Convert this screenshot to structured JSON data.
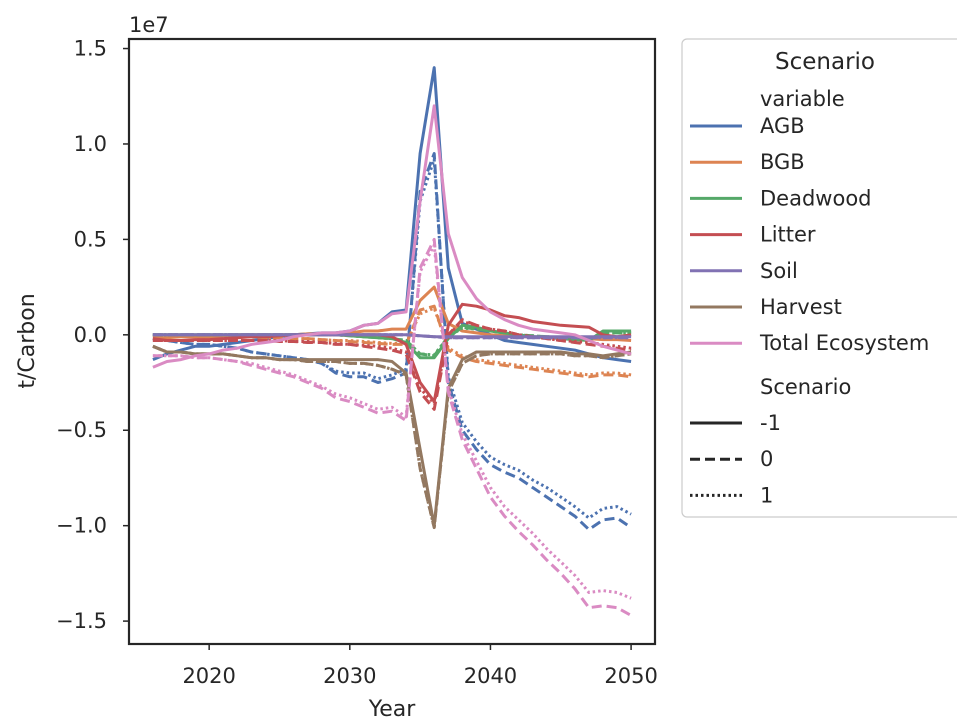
{
  "chart_data": {
    "type": "line",
    "title": "",
    "xlabel": "Year",
    "ylabel": "t/Carbon",
    "y_offset_label": "1e7",
    "xlim": [
      2014.3,
      2051.7
    ],
    "ylim": [
      -16200000.0,
      15500000.0
    ],
    "xticks": [
      2020,
      2030,
      2040,
      2050
    ],
    "yticks": [
      -15000000.0,
      -10000000.0,
      -5000000.0,
      0,
      5000000.0,
      10000000.0,
      15000000.0
    ],
    "ytick_labels": [
      "−1.5",
      "−1.0",
      "−0.5",
      "0.0",
      "0.5",
      "1.0",
      "1.5"
    ],
    "xtick_labels": [
      "2020",
      "2030",
      "2040",
      "2050"
    ],
    "grid": false,
    "legend": {
      "placement": "outside-right",
      "title": "Scenario",
      "hue_heading": "variable",
      "style_heading": "Scenario",
      "styles": [
        {
          "label": "-1",
          "dash": "solid"
        },
        {
          "label": "0",
          "dash": "dashed"
        },
        {
          "label": "1",
          "dash": "dotted"
        }
      ]
    },
    "x": [
      2016,
      2017,
      2018,
      2019,
      2020,
      2021,
      2022,
      2023,
      2024,
      2025,
      2026,
      2027,
      2028,
      2029,
      2030,
      2031,
      2032,
      2033,
      2034,
      2035,
      2036,
      2037,
      2038,
      2039,
      2040,
      2041,
      2042,
      2043,
      2044,
      2045,
      2046,
      2047,
      2048,
      2049,
      2050
    ],
    "series": [
      {
        "name": "AGB",
        "color": "#4c72b0",
        "lines": {
          "-1": [
            -1300000.0,
            -1000000.0,
            -800000.0,
            -600000.0,
            -600000.0,
            -500000.0,
            -400000.0,
            -300000.0,
            -200000.0,
            -100000.0,
            0,
            50000.0,
            100000.0,
            100000.0,
            200000.0,
            500000.0,
            600000.0,
            1200000.0,
            1300000.0,
            9500000.0,
            14000000.0,
            3500000.0,
            600000.0,
            300000.0,
            0,
            -300000.0,
            -400000.0,
            -500000.0,
            -600000.0,
            -700000.0,
            -800000.0,
            -1000000.0,
            -1200000.0,
            -1300000.0,
            -1400000.0
          ],
          "0": [
            -200000.0,
            -300000.0,
            -400000.0,
            -500000.0,
            -500000.0,
            -600000.0,
            -700000.0,
            -900000.0,
            -1000000.0,
            -1100000.0,
            -1200000.0,
            -1300000.0,
            -1500000.0,
            -2000000.0,
            -2200000.0,
            -2200000.0,
            -2500000.0,
            -2300000.0,
            -2000000.0,
            7500000.0,
            9500000.0,
            -2500000.0,
            -5000000.0,
            -6000000.0,
            -6800000.0,
            -7200000.0,
            -7500000.0,
            -8000000.0,
            -8500000.0,
            -9000000.0,
            -9500000.0,
            -10200000.0,
            -9700000.0,
            -9600000.0,
            -10100000.0
          ],
          "1": [
            -200000.0,
            -300000.0,
            -400000.0,
            -500000.0,
            -500000.0,
            -600000.0,
            -700000.0,
            -900000.0,
            -1000000.0,
            -1100000.0,
            -1200000.0,
            -1300000.0,
            -1500000.0,
            -1900000.0,
            -2000000.0,
            -2000000.0,
            -2300000.0,
            -2100000.0,
            -1800000.0,
            7000000.0,
            9200000.0,
            -2200000.0,
            -4600000.0,
            -5600000.0,
            -6400000.0,
            -6800000.0,
            -7100000.0,
            -7600000.0,
            -8000000.0,
            -8500000.0,
            -9000000.0,
            -9600000.0,
            -9100000.0,
            -9000000.0,
            -9400000.0
          ]
        }
      },
      {
        "name": "BGB",
        "color": "#dd8452",
        "lines": {
          "-1": [
            -200000.0,
            -150000.0,
            -100000.0,
            -100000.0,
            -100000.0,
            -50000.0,
            0,
            0,
            0,
            0,
            0,
            50000.0,
            50000.0,
            50000.0,
            100000.0,
            200000.0,
            200000.0,
            300000.0,
            300000.0,
            1800000.0,
            2500000.0,
            600000.0,
            200000.0,
            100000.0,
            0,
            -50000.0,
            -100000.0,
            -100000.0,
            -150000.0,
            -200000.0,
            -200000.0,
            -200000.0,
            -250000.0,
            -250000.0,
            -300000.0
          ],
          "0": [
            -50000.0,
            -50000.0,
            -50000.0,
            -100000.0,
            -100000.0,
            -100000.0,
            -100000.0,
            -100000.0,
            -150000.0,
            -150000.0,
            -200000.0,
            -200000.0,
            -250000.0,
            -300000.0,
            -350000.0,
            -400000.0,
            -450000.0,
            -500000.0,
            -500000.0,
            1300000.0,
            1500000.0,
            -800000.0,
            -1200000.0,
            -1400000.0,
            -1500000.0,
            -1600000.0,
            -1700000.0,
            -1800000.0,
            -1900000.0,
            -2000000.0,
            -2100000.0,
            -2200000.0,
            -2100000.0,
            -2100000.0,
            -2200000.0
          ],
          "1": [
            -50000.0,
            -50000.0,
            -50000.0,
            -100000.0,
            -100000.0,
            -100000.0,
            -100000.0,
            -100000.0,
            -150000.0,
            -150000.0,
            -200000.0,
            -200000.0,
            -250000.0,
            -300000.0,
            -300000.0,
            -350000.0,
            -400000.0,
            -450000.0,
            -450000.0,
            1100000.0,
            1400000.0,
            -700000.0,
            -1100000.0,
            -1300000.0,
            -1400000.0,
            -1500000.0,
            -1600000.0,
            -1700000.0,
            -1800000.0,
            -1900000.0,
            -2000000.0,
            -2100000.0,
            -2000000.0,
            -2000000.0,
            -2100000.0
          ]
        }
      },
      {
        "name": "Deadwood",
        "color": "#55a868",
        "lines": {
          "-1": [
            0,
            0,
            0,
            0,
            0,
            0,
            0,
            0,
            0,
            0,
            0,
            0,
            0,
            0,
            -50000.0,
            -100000.0,
            -150000.0,
            -200000.0,
            -400000.0,
            -1200000.0,
            -1200000.0,
            -200000.0,
            500000.0,
            400000.0,
            200000.0,
            100000.0,
            0,
            -100000.0,
            -100000.0,
            -200000.0,
            -250000.0,
            -300000.0,
            200000.0,
            200000.0,
            200000.0
          ],
          "0": [
            0,
            0,
            0,
            0,
            0,
            0,
            0,
            0,
            0,
            0,
            0,
            0,
            0,
            0,
            -50000.0,
            -100000.0,
            -150000.0,
            -200000.0,
            -300000.0,
            -1000000.0,
            -1100000.0,
            -100000.0,
            400000.0,
            300000.0,
            200000.0,
            100000.0,
            0,
            -50000.0,
            -100000.0,
            -150000.0,
            -200000.0,
            -250000.0,
            100000.0,
            100000.0,
            100000.0
          ],
          "1": [
            0,
            0,
            0,
            0,
            0,
            0,
            0,
            0,
            0,
            0,
            0,
            0,
            0,
            0,
            -50000.0,
            -100000.0,
            -150000.0,
            -200000.0,
            -300000.0,
            -1000000.0,
            -1050000.0,
            -100000.0,
            350000.0,
            300000.0,
            200000.0,
            100000.0,
            0,
            -50000.0,
            -100000.0,
            -150000.0,
            -200000.0,
            -250000.0,
            100000.0,
            100000.0,
            100000.0
          ]
        }
      },
      {
        "name": "Litter",
        "color": "#c44e52",
        "lines": {
          "-1": [
            -200000.0,
            -300000.0,
            -300000.0,
            -250000.0,
            -250000.0,
            -200000.0,
            -150000.0,
            -100000.0,
            -100000.0,
            -50000.0,
            0,
            0,
            0,
            0,
            0,
            0,
            0,
            -100000.0,
            -500000.0,
            -2500000.0,
            -3500000.0,
            500000.0,
            1600000.0,
            1500000.0,
            1300000.0,
            1000000.0,
            900000.0,
            700000.0,
            600000.0,
            500000.0,
            450000.0,
            400000.0,
            0,
            -100000.0,
            0
          ],
          "0": [
            -300000.0,
            -300000.0,
            -300000.0,
            -300000.0,
            -300000.0,
            -300000.0,
            -300000.0,
            -300000.0,
            -300000.0,
            -350000.0,
            -350000.0,
            -400000.0,
            -400000.0,
            -500000.0,
            -500000.0,
            -600000.0,
            -700000.0,
            -800000.0,
            -1000000.0,
            -3000000.0,
            -3900000.0,
            0,
            800000.0,
            500000.0,
            300000.0,
            200000.0,
            0,
            -100000.0,
            -200000.0,
            -300000.0,
            -400000.0,
            -500000.0,
            -600000.0,
            -700000.0,
            -800000.0
          ],
          "1": [
            -300000.0,
            -300000.0,
            -300000.0,
            -300000.0,
            -300000.0,
            -300000.0,
            -300000.0,
            -300000.0,
            -300000.0,
            -300000.0,
            -350000.0,
            -350000.0,
            -400000.0,
            -450000.0,
            -500000.0,
            -550000.0,
            -600000.0,
            -700000.0,
            -900000.0,
            -2800000.0,
            -3600000.0,
            0,
            700000.0,
            500000.0,
            300000.0,
            200000.0,
            0,
            -100000.0,
            -200000.0,
            -300000.0,
            -350000.0,
            -400000.0,
            -500000.0,
            -600000.0,
            -700000.0
          ]
        }
      },
      {
        "name": "Soil",
        "color": "#8172b3",
        "lines": {
          "-1": [
            0,
            0,
            0,
            0,
            0,
            0,
            0,
            0,
            0,
            0,
            0,
            0,
            0,
            0,
            0,
            0,
            0,
            0,
            0,
            -50000.0,
            -100000.0,
            -100000.0,
            -100000.0,
            -100000.0,
            -100000.0,
            -100000.0,
            -100000.0,
            -100000.0,
            -100000.0,
            -100000.0,
            -100000.0,
            -100000.0,
            -100000.0,
            -100000.0,
            -100000.0
          ],
          "0": [
            0,
            0,
            0,
            0,
            0,
            0,
            0,
            0,
            0,
            0,
            0,
            0,
            0,
            0,
            0,
            0,
            0,
            0,
            0,
            -50000.0,
            -100000.0,
            -150000.0,
            -150000.0,
            -150000.0,
            -150000.0,
            -150000.0,
            -150000.0,
            -150000.0,
            -150000.0,
            -150000.0,
            -150000.0,
            -150000.0,
            -150000.0,
            -150000.0,
            -150000.0
          ],
          "1": [
            0,
            0,
            0,
            0,
            0,
            0,
            0,
            0,
            0,
            0,
            0,
            0,
            0,
            0,
            0,
            0,
            0,
            0,
            0,
            -50000.0,
            -100000.0,
            -150000.0,
            -150000.0,
            -150000.0,
            -150000.0,
            -150000.0,
            -150000.0,
            -150000.0,
            -150000.0,
            -150000.0,
            -150000.0,
            -150000.0,
            -150000.0,
            -150000.0,
            -150000.0
          ]
        }
      },
      {
        "name": "Harvest",
        "color": "#937860",
        "lines": {
          "-1": [
            -600000.0,
            -900000.0,
            -900000.0,
            -1000000.0,
            -1000000.0,
            -1000000.0,
            -1100000.0,
            -1200000.0,
            -1200000.0,
            -1300000.0,
            -1300000.0,
            -1300000.0,
            -1300000.0,
            -1300000.0,
            -1300000.0,
            -1300000.0,
            -1300000.0,
            -1400000.0,
            -2000000.0,
            -6000000.0,
            -10000000.0,
            -2800000.0,
            -1300000.0,
            -900000.0,
            -900000.0,
            -900000.0,
            -900000.0,
            -900000.0,
            -900000.0,
            -900000.0,
            -1000000.0,
            -1000000.0,
            -1100000.0,
            -1000000.0,
            -900000.0
          ],
          "0": [
            -600000.0,
            -900000.0,
            -900000.0,
            -1000000.0,
            -1000000.0,
            -1000000.0,
            -1100000.0,
            -1200000.0,
            -1200000.0,
            -1300000.0,
            -1300000.0,
            -1400000.0,
            -1400000.0,
            -1400000.0,
            -1500000.0,
            -1500000.0,
            -1600000.0,
            -1800000.0,
            -2100000.0,
            -7000000.0,
            -10100000.0,
            -3000000.0,
            -1500000.0,
            -1100000.0,
            -1000000.0,
            -1000000.0,
            -1000000.0,
            -1000000.0,
            -1000000.0,
            -1000000.0,
            -1100000.0,
            -1100000.0,
            -1200000.0,
            -1100000.0,
            -1000000.0
          ],
          "1": [
            -600000.0,
            -900000.0,
            -900000.0,
            -1000000.0,
            -1000000.0,
            -1000000.0,
            -1100000.0,
            -1200000.0,
            -1200000.0,
            -1300000.0,
            -1300000.0,
            -1400000.0,
            -1400000.0,
            -1400000.0,
            -1500000.0,
            -1500000.0,
            -1600000.0,
            -1800000.0,
            -2100000.0,
            -7000000.0,
            -10100000.0,
            -3000000.0,
            -1500000.0,
            -1100000.0,
            -1000000.0,
            -1000000.0,
            -1000000.0,
            -1000000.0,
            -1000000.0,
            -1000000.0,
            -1100000.0,
            -1100000.0,
            -1200000.0,
            -1100000.0,
            -1000000.0
          ]
        }
      },
      {
        "name": "Total Ecosystem",
        "color": "#da8bc3",
        "lines": {
          "-1": [
            -1700000.0,
            -1400000.0,
            -1300000.0,
            -1100000.0,
            -1000000.0,
            -800000.0,
            -700000.0,
            -500000.0,
            -400000.0,
            -300000.0,
            -100000.0,
            0,
            100000.0,
            100000.0,
            200000.0,
            500000.0,
            600000.0,
            1100000.0,
            1200000.0,
            7000000.0,
            12000000.0,
            5300000.0,
            3000000.0,
            1900000.0,
            1200000.0,
            800000.0,
            500000.0,
            300000.0,
            200000.0,
            100000.0,
            0,
            -300000.0,
            -600000.0,
            -800000.0,
            -1000000.0
          ],
          "0": [
            -1100000.0,
            -1100000.0,
            -1100000.0,
            -1200000.0,
            -1200000.0,
            -1300000.0,
            -1400000.0,
            -1600000.0,
            -1800000.0,
            -2000000.0,
            -2200000.0,
            -2500000.0,
            -2800000.0,
            -3300000.0,
            -3500000.0,
            -3800000.0,
            -4100000.0,
            -4000000.0,
            -4500000.0,
            3500000.0,
            5000000.0,
            -3000000.0,
            -5500000.0,
            -7000000.0,
            -8500000.0,
            -9500000.0,
            -10300000.0,
            -11000000.0,
            -11800000.0,
            -12500000.0,
            -13300000.0,
            -14300000.0,
            -14200000.0,
            -14300000.0,
            -14700000.0
          ],
          "1": [
            -1100000.0,
            -1100000.0,
            -1100000.0,
            -1200000.0,
            -1200000.0,
            -1300000.0,
            -1400000.0,
            -1500000.0,
            -1700000.0,
            -1900000.0,
            -2100000.0,
            -2400000.0,
            -2700000.0,
            -3100000.0,
            -3300000.0,
            -3600000.0,
            -3900000.0,
            -3800000.0,
            -4300000.0,
            3300000.0,
            4700000.0,
            -2800000.0,
            -5200000.0,
            -6600000.0,
            -8000000.0,
            -9000000.0,
            -9700000.0,
            -10400000.0,
            -11200000.0,
            -11900000.0,
            -12600000.0,
            -13500000.0,
            -13400000.0,
            -13500000.0,
            -13800000.0
          ]
        }
      }
    ]
  }
}
